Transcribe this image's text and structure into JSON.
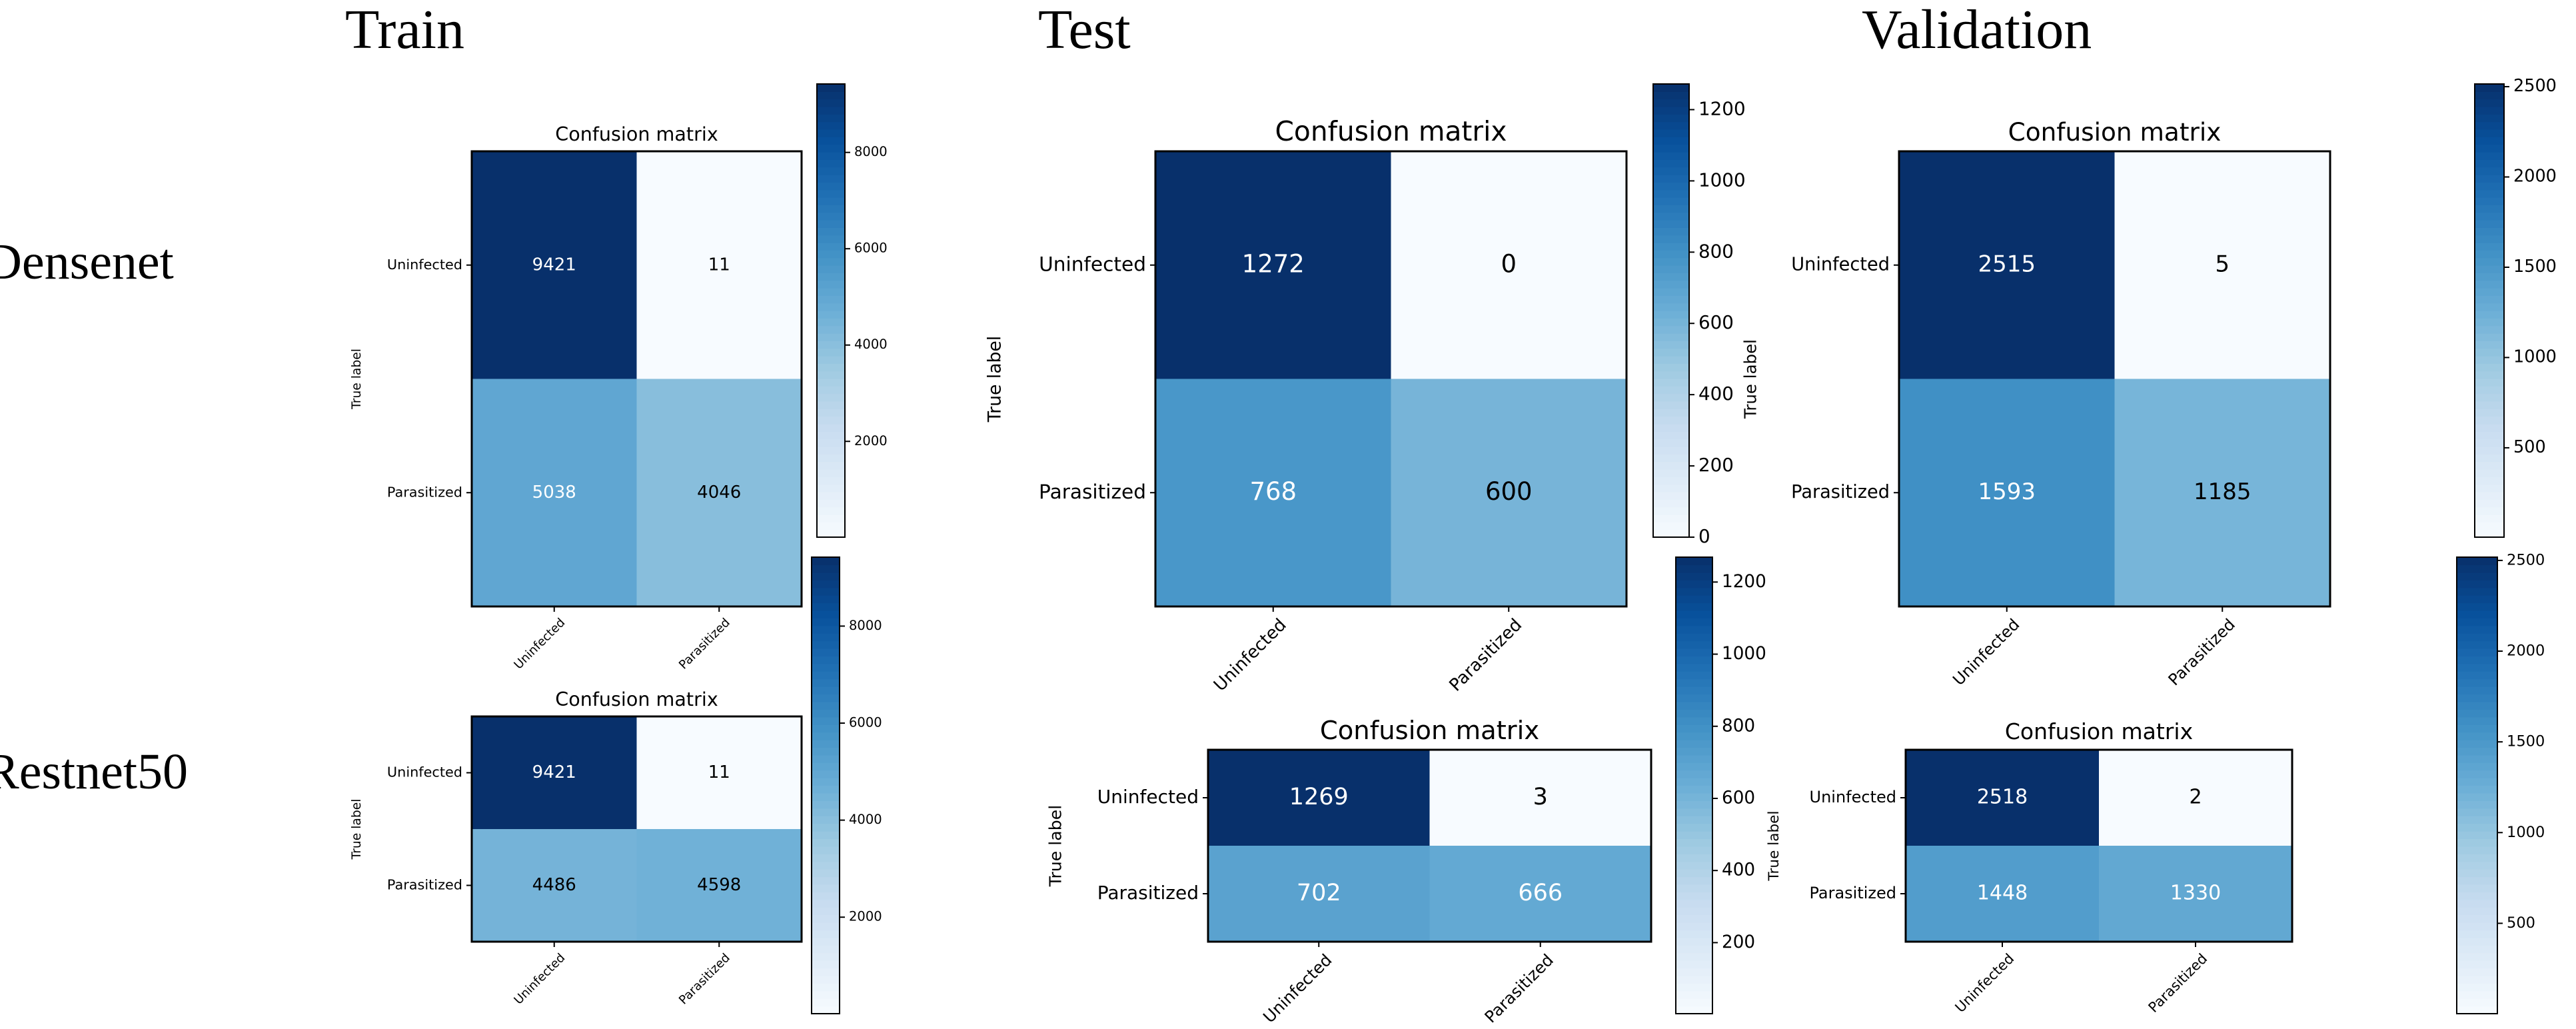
{
  "columns": [
    "Train",
    "Test",
    "Validation"
  ],
  "rows": [
    "Densenet",
    "Restnet50"
  ],
  "colormap": "Blues",
  "chart_data": [
    {
      "type": "heatmap",
      "model": "Densenet",
      "split": "Train",
      "title": "Confusion matrix",
      "ylabel": "True label",
      "row_labels": [
        "Uninfected",
        "Parasitized"
      ],
      "col_labels": [
        "Uninfected",
        "Parasitized"
      ],
      "values": [
        [
          9421,
          11
        ],
        [
          5038,
          4046
        ]
      ],
      "colorbar_range": [
        11,
        9421
      ],
      "colorbar_ticks": [
        2000,
        4000,
        6000,
        8000
      ]
    },
    {
      "type": "heatmap",
      "model": "Densenet",
      "split": "Test",
      "title": "Confusion matrix",
      "ylabel": "True label",
      "row_labels": [
        "Uninfected",
        "Parasitized"
      ],
      "col_labels": [
        "Uninfected",
        "Parasitized"
      ],
      "values": [
        [
          1272,
          0
        ],
        [
          768,
          600
        ]
      ],
      "colorbar_range": [
        0,
        1272
      ],
      "colorbar_ticks": [
        0,
        200,
        400,
        600,
        800,
        1000,
        1200
      ]
    },
    {
      "type": "heatmap",
      "model": "Densenet",
      "split": "Validation",
      "title": "Confusion matrix",
      "ylabel": "True label",
      "row_labels": [
        "Uninfected",
        "Parasitized"
      ],
      "col_labels": [
        "Uninfected",
        "Parasitized"
      ],
      "values": [
        [
          2515,
          5
        ],
        [
          1593,
          1185
        ]
      ],
      "colorbar_range": [
        5,
        2515
      ],
      "colorbar_ticks": [
        500,
        1000,
        1500,
        2000,
        2500
      ]
    },
    {
      "type": "heatmap",
      "model": "Restnet50",
      "split": "Train",
      "title": "Confusion matrix",
      "ylabel": "True label",
      "row_labels": [
        "Uninfected",
        "Parasitized"
      ],
      "col_labels": [
        "Uninfected",
        "Parasitized"
      ],
      "values": [
        [
          9421,
          11
        ],
        [
          4486,
          4598
        ]
      ],
      "colorbar_range": [
        11,
        9421
      ],
      "colorbar_ticks": [
        2000,
        4000,
        6000,
        8000
      ]
    },
    {
      "type": "heatmap",
      "model": "Restnet50",
      "split": "Test",
      "title": "Confusion matrix",
      "ylabel": "True label",
      "row_labels": [
        "Uninfected",
        "Parasitized"
      ],
      "col_labels": [
        "Uninfected",
        "Parasitized"
      ],
      "values": [
        [
          1269,
          3
        ],
        [
          702,
          666
        ]
      ],
      "colorbar_range": [
        3,
        1269
      ],
      "colorbar_ticks": [
        200,
        400,
        600,
        800,
        1000,
        1200
      ]
    },
    {
      "type": "heatmap",
      "model": "Restnet50",
      "split": "Validation",
      "title": "Confusion matrix",
      "ylabel": "True label",
      "row_labels": [
        "Uninfected",
        "Parasitized"
      ],
      "col_labels": [
        "Uninfected",
        "Parasitized"
      ],
      "values": [
        [
          2518,
          2
        ],
        [
          1448,
          1330
        ]
      ],
      "colorbar_range": [
        2,
        2518
      ],
      "colorbar_ticks": [
        500,
        1000,
        1500,
        2000,
        2500
      ]
    }
  ]
}
